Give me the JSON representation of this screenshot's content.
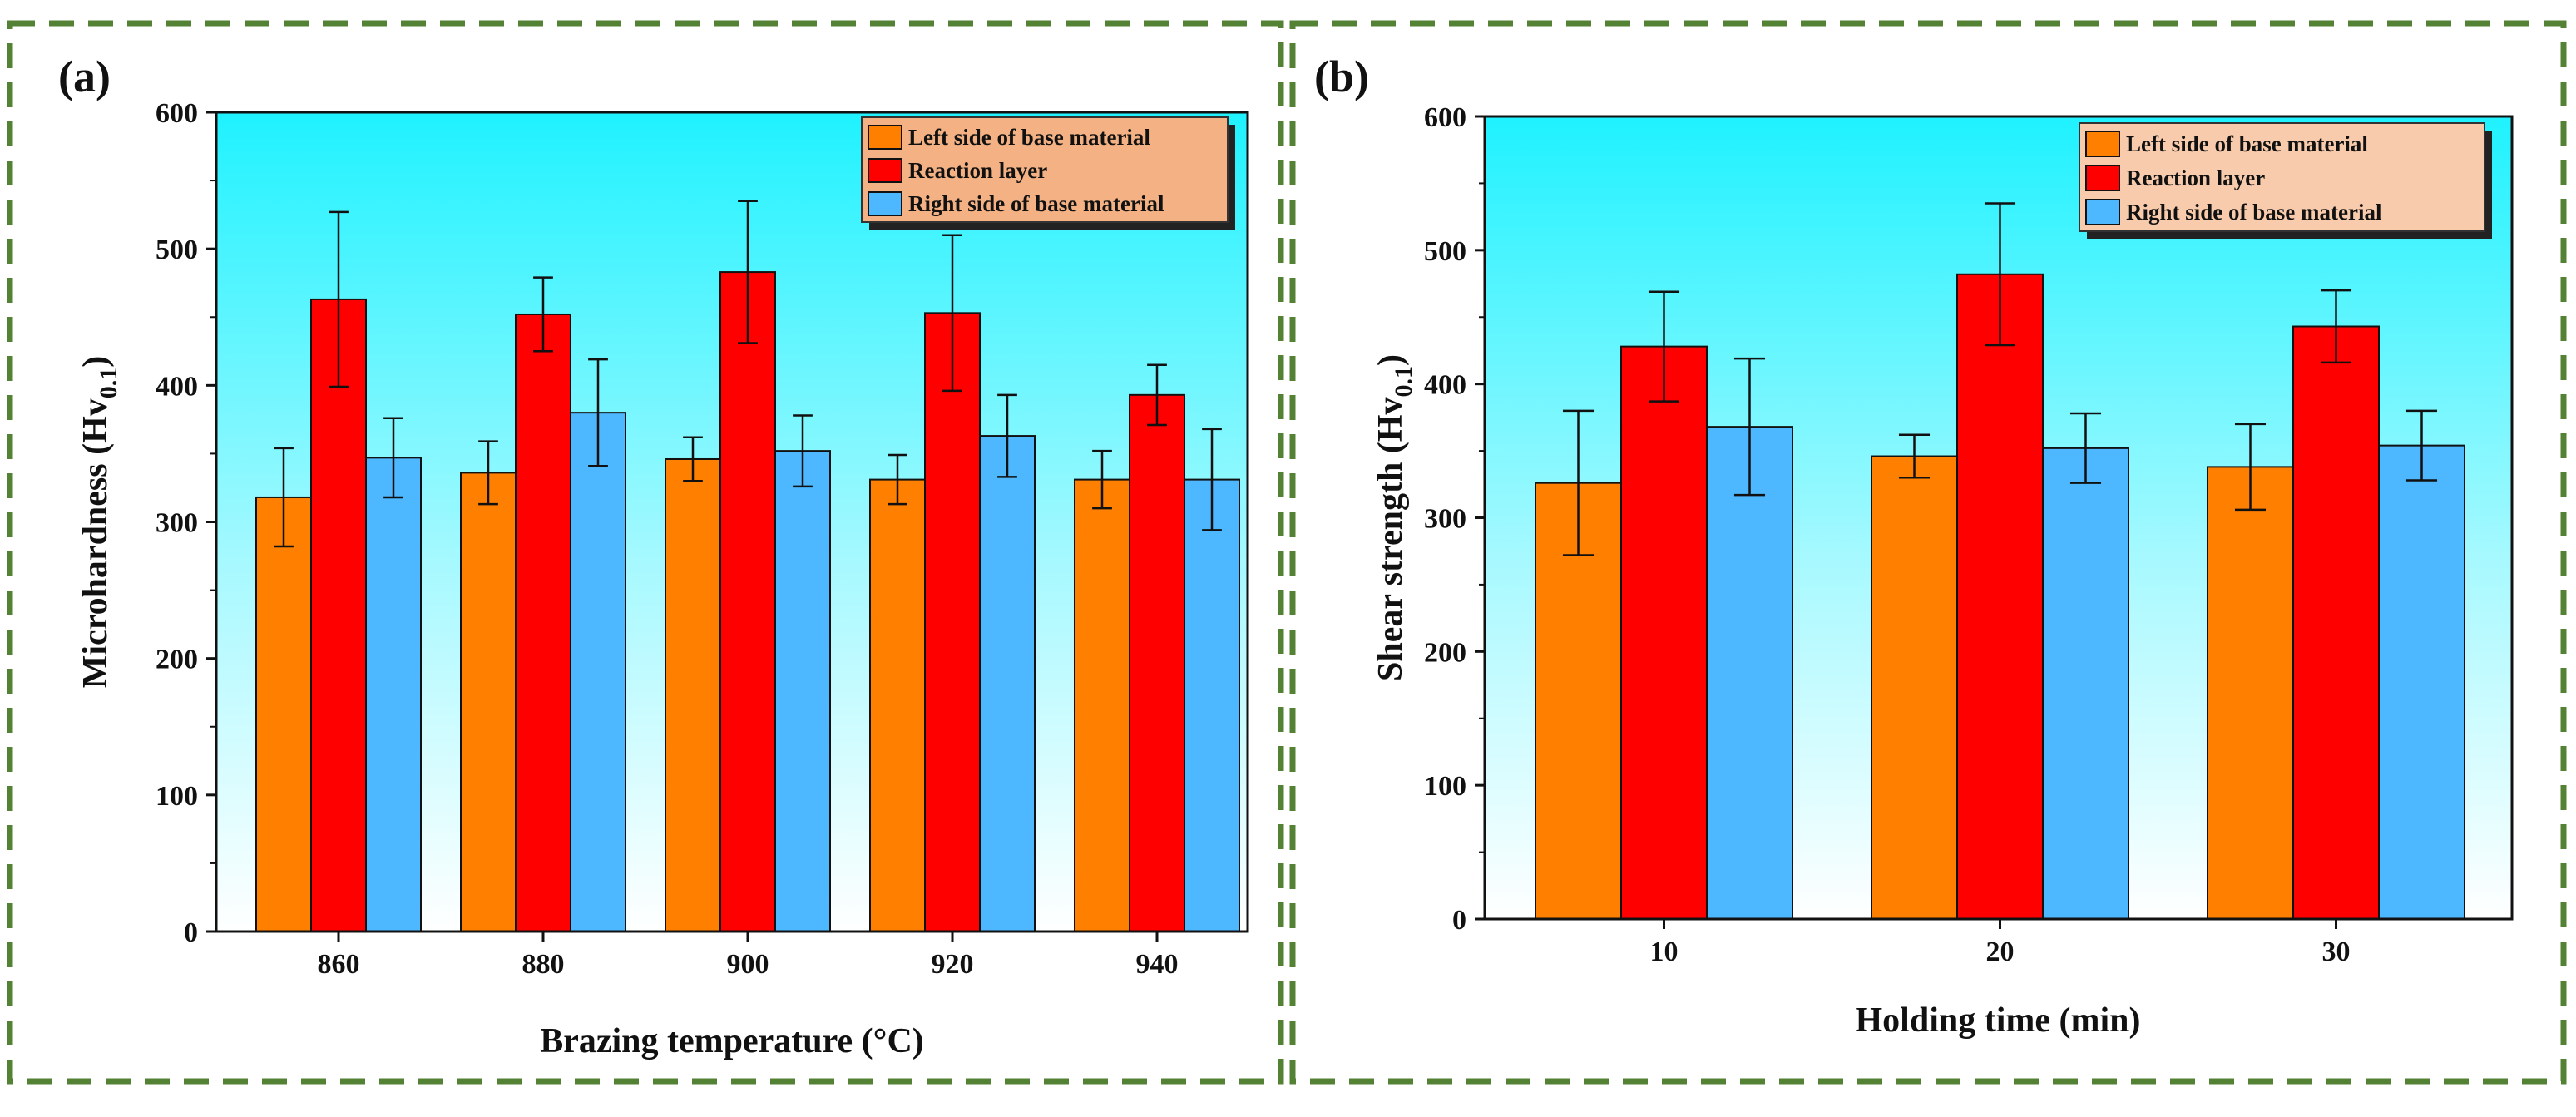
{
  "chart_data": [
    {
      "panel_label": "(a)",
      "type": "bar",
      "xlabel": "Brazing temperature (°C)",
      "ylabel_main": "Microhardness (Hv",
      "ylabel_sub": "0.1",
      "ylabel_end": ")",
      "ylim": [
        0,
        600
      ],
      "yticks": [
        "0",
        "100",
        "200",
        "300",
        "400",
        "500",
        "600"
      ],
      "categories": [
        "860",
        "880",
        "900",
        "920",
        "940"
      ],
      "series": [
        {
          "name": "Left side of base material",
          "color": "#ff8000",
          "values": [
            318,
            336,
            346,
            331,
            331
          ],
          "errors": [
            36,
            23,
            16,
            18,
            21
          ]
        },
        {
          "name": "Reaction layer",
          "color": "#ff0000",
          "values": [
            463,
            452,
            483,
            453,
            393
          ],
          "errors": [
            64,
            27,
            52,
            57,
            22
          ]
        },
        {
          "name": "Right side of base material",
          "color": "#4db8ff",
          "values": [
            347,
            380,
            352,
            363,
            331
          ],
          "errors": [
            29,
            39,
            26,
            30,
            37
          ]
        }
      ],
      "legend_position": "top-right"
    },
    {
      "panel_label": "(b)",
      "type": "bar",
      "xlabel": "Holding time (min)",
      "ylabel_main": "Shear strength (Hv",
      "ylabel_sub": "0.1",
      "ylabel_end": ")",
      "ylim": [
        0,
        600
      ],
      "yticks": [
        "0",
        "100",
        "200",
        "300",
        "400",
        "500",
        "600"
      ],
      "categories": [
        "10",
        "20",
        "30"
      ],
      "series": [
        {
          "name": "Left side of base material",
          "color": "#ff8000",
          "values": [
            326,
            346,
            338
          ],
          "errors": [
            54,
            16,
            32
          ]
        },
        {
          "name": "Reaction layer",
          "color": "#ff0000",
          "values": [
            428,
            482,
            443
          ],
          "errors": [
            41,
            53,
            27
          ]
        },
        {
          "name": "Right side of base material",
          "color": "#4db8ff",
          "values": [
            368,
            352,
            354
          ],
          "errors": [
            51,
            26,
            26
          ]
        }
      ],
      "legend_position": "top-right"
    }
  ]
}
